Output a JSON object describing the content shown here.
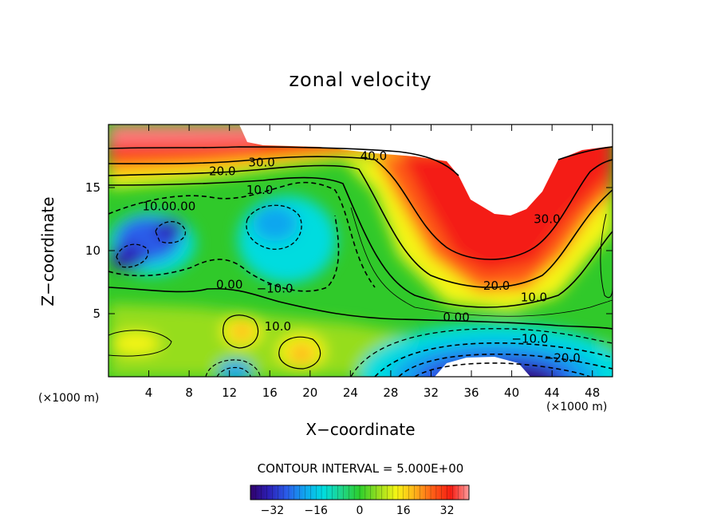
{
  "chart_data": {
    "type": "heatmap",
    "title": "zonal velocity",
    "xlabel": "X−coordinate",
    "ylabel": "Z−coordinate",
    "x_unit_label_left": "(×1000 m)",
    "x_unit_label_right": "(×1000 m)",
    "x_ticks": [
      4,
      8,
      12,
      16,
      20,
      24,
      28,
      32,
      36,
      40,
      44,
      48
    ],
    "y_ticks": [
      5,
      10,
      15
    ],
    "xlim": [
      0,
      50
    ],
    "ylim": [
      0,
      20
    ],
    "contour_interval_label": "CONTOUR INTERVAL = 5.000E+00",
    "colorbar": {
      "range": [
        -40,
        40
      ],
      "tick_values": [
        -32,
        -16,
        0,
        16,
        32
      ],
      "tick_labels": [
        "−32",
        "−16",
        "0",
        "16",
        "32"
      ]
    },
    "contour_labels": [
      {
        "text": "40.0",
        "x": 26.3,
        "y": 17.5
      },
      {
        "text": "30.0",
        "x": 15.2,
        "y": 17.0
      },
      {
        "text": "20.0",
        "x": 11.3,
        "y": 16.3
      },
      {
        "text": "10.0",
        "x": 15.0,
        "y": 14.8
      },
      {
        "text": "10.00.00",
        "x": 6.0,
        "y": 13.5
      },
      {
        "text": "30.0",
        "x": 43.5,
        "y": 12.5
      },
      {
        "text": "0.00",
        "x": 12.0,
        "y": 7.3
      },
      {
        "text": "−10.0",
        "x": 16.5,
        "y": 7.0
      },
      {
        "text": "20.0",
        "x": 38.5,
        "y": 7.2
      },
      {
        "text": "10.0",
        "x": 42.2,
        "y": 6.3
      },
      {
        "text": "10.0",
        "x": 16.8,
        "y": 4.0
      },
      {
        "text": "0.00",
        "x": 34.5,
        "y": 4.7
      },
      {
        "text": "−10.0",
        "x": 41.8,
        "y": 3.0
      },
      {
        "text": "−20.0",
        "x": 45.0,
        "y": 1.5
      }
    ],
    "colormap": [
      "#30006a",
      "#2b1fb5",
      "#2a5dea",
      "#10a6ef",
      "#00dcdf",
      "#1fd58a",
      "#2ccf2c",
      "#96dd1f",
      "#f5f514",
      "#ffb41a",
      "#ff5f17",
      "#f41c12",
      "#ff9c9c"
    ]
  }
}
